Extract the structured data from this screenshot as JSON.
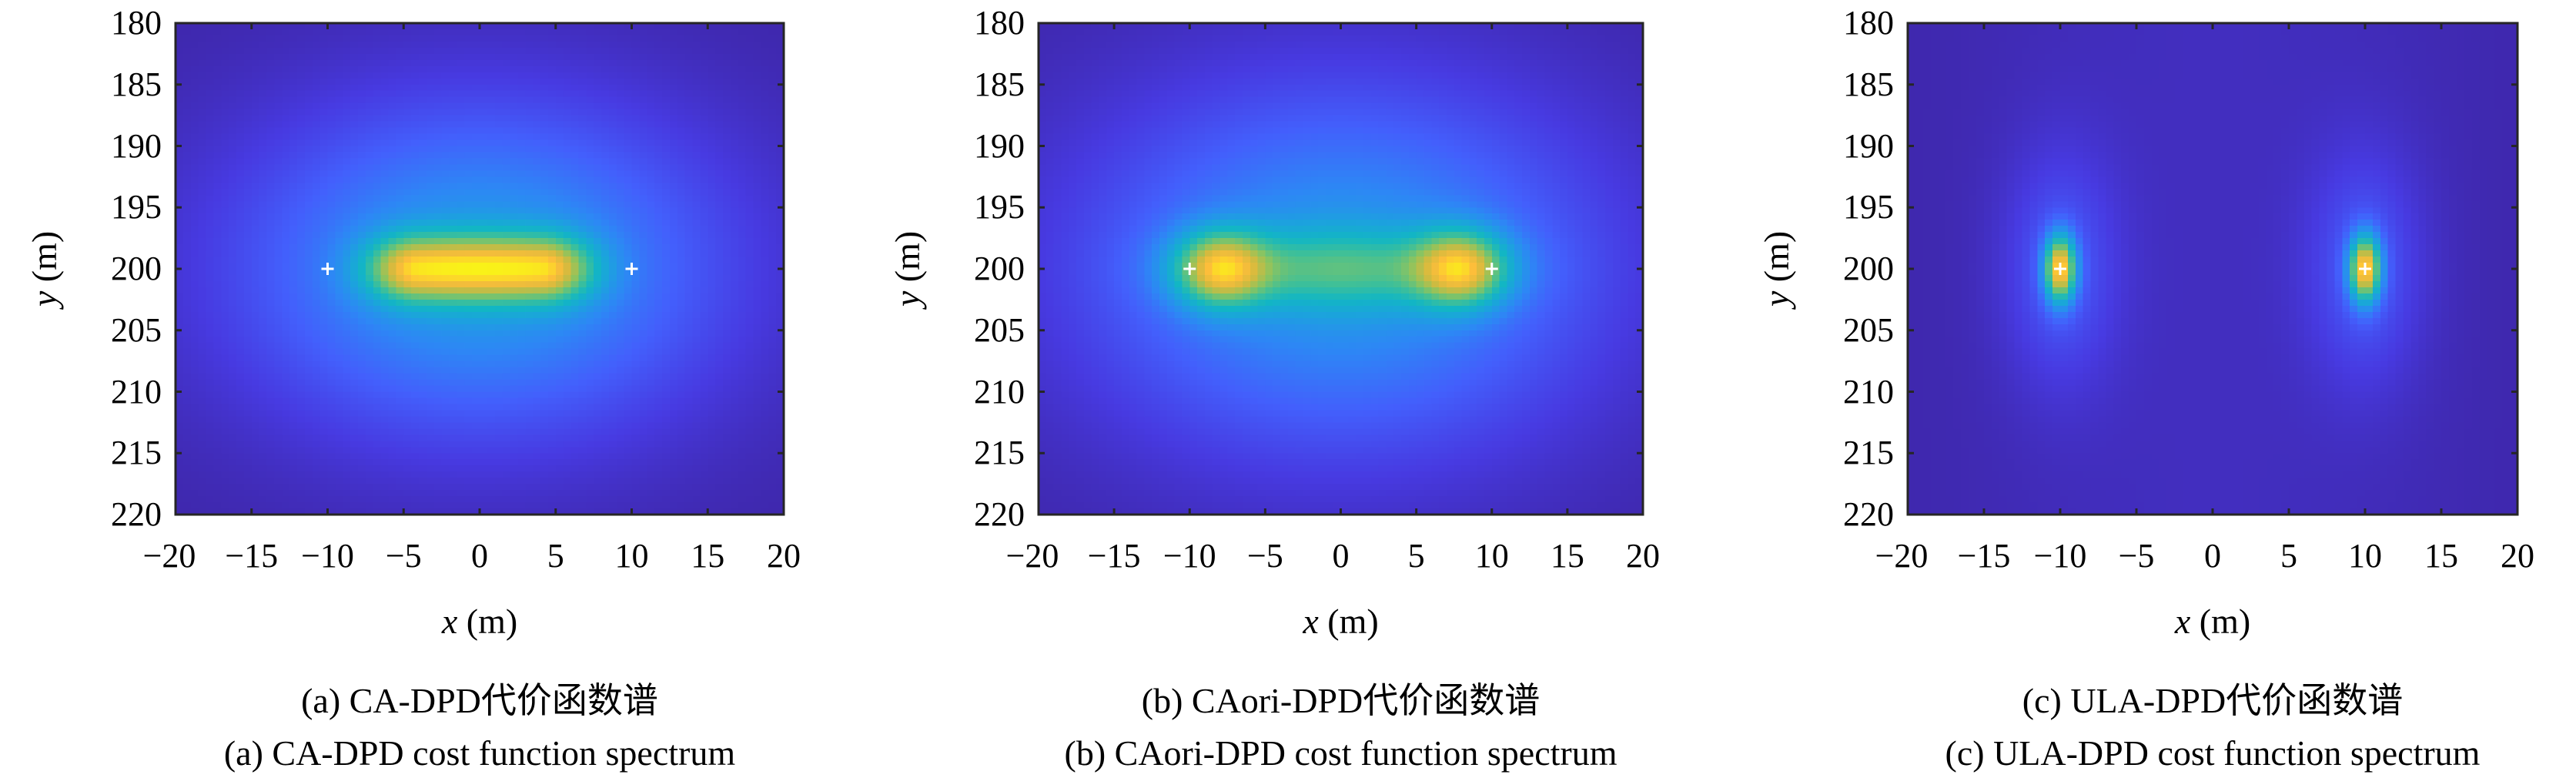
{
  "chart_data": [
    {
      "type": "heatmap",
      "id": "a",
      "xlabel_var": "x",
      "xlabel_unit": "(m)",
      "ylabel_var": "y",
      "ylabel_unit": "(m)",
      "xlim": [
        -20,
        20
      ],
      "ylim": [
        180,
        220
      ],
      "xticks": [
        -20,
        -15,
        -10,
        -5,
        0,
        5,
        10,
        15,
        20
      ],
      "yticks": [
        180,
        185,
        190,
        195,
        200,
        205,
        210,
        215,
        220
      ],
      "xtick_labels": [
        "−20",
        "−15",
        "−10",
        "−5",
        "0",
        "5",
        "10",
        "15",
        "20"
      ],
      "ytick_labels": [
        "180",
        "185",
        "190",
        "195",
        "200",
        "205",
        "210",
        "215",
        "220"
      ],
      "markers": [
        {
          "x": -10,
          "y": 200
        },
        {
          "x": 10,
          "y": 200
        }
      ],
      "pattern": "single elongated peak spanning x≈-8..8 at y=200",
      "colormap": "parula",
      "caption_cn": "(a) CA-DPD代价函数谱",
      "caption_en": "(a) CA-DPD cost function spectrum"
    },
    {
      "type": "heatmap",
      "id": "b",
      "xlabel_var": "x",
      "xlabel_unit": "(m)",
      "ylabel_var": "y",
      "ylabel_unit": "(m)",
      "xlim": [
        -20,
        20
      ],
      "ylim": [
        180,
        220
      ],
      "xticks": [
        -20,
        -15,
        -10,
        -5,
        0,
        5,
        10,
        15,
        20
      ],
      "yticks": [
        180,
        185,
        190,
        195,
        200,
        205,
        210,
        215,
        220
      ],
      "xtick_labels": [
        "−20",
        "−15",
        "−10",
        "−5",
        "0",
        "5",
        "10",
        "15",
        "20"
      ],
      "ytick_labels": [
        "180",
        "185",
        "190",
        "195",
        "200",
        "205",
        "210",
        "215",
        "220"
      ],
      "markers": [
        {
          "x": -10,
          "y": 200
        },
        {
          "x": 10,
          "y": 200
        }
      ],
      "pattern": "two peaks near x=±8, y=200 joined by bridge",
      "colormap": "parula",
      "caption_cn": "(b) CAori-DPD代价函数谱",
      "caption_en": "(b) CAori-DPD cost function spectrum"
    },
    {
      "type": "heatmap",
      "id": "c",
      "xlabel_var": "x",
      "xlabel_unit": "(m)",
      "ylabel_var": "y",
      "ylabel_unit": "(m)",
      "xlim": [
        -20,
        20
      ],
      "ylim": [
        180,
        220
      ],
      "xticks": [
        -20,
        -15,
        -10,
        -5,
        0,
        5,
        10,
        15,
        20
      ],
      "yticks": [
        180,
        185,
        190,
        195,
        200,
        205,
        210,
        215,
        220
      ],
      "xtick_labels": [
        "−20",
        "−15",
        "−10",
        "−5",
        "0",
        "5",
        "10",
        "15",
        "20"
      ],
      "ytick_labels": [
        "180",
        "185",
        "190",
        "195",
        "200",
        "205",
        "210",
        "215",
        "220"
      ],
      "markers": [
        {
          "x": -10,
          "y": 200
        },
        {
          "x": 10,
          "y": 200
        }
      ],
      "pattern": "two sharp peaks at x=±10, y=200",
      "colormap": "parula",
      "caption_cn": "(c) ULA-DPD代价函数谱",
      "caption_en": "(c) ULA-DPD cost function spectrum"
    }
  ]
}
